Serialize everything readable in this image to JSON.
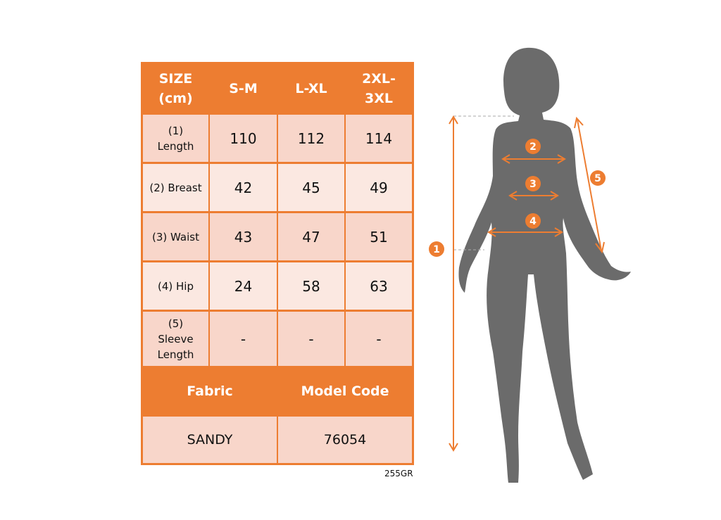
{
  "table": {
    "header": [
      "SIZE (cm)",
      "S-M",
      "L-XL",
      "2XL-3XL"
    ],
    "header_lines": [
      [
        "SIZE",
        "(cm)"
      ],
      [
        "S-M"
      ],
      [
        "L-XL"
      ],
      [
        "2XL-",
        "3XL"
      ]
    ],
    "rows": [
      {
        "label_lines": [
          "(1)",
          "Length"
        ],
        "values": [
          "110",
          "112",
          "114"
        ]
      },
      {
        "label_lines": [
          "(2) Breast"
        ],
        "values": [
          "42",
          "45",
          "49"
        ]
      },
      {
        "label_lines": [
          "(3) Waist"
        ],
        "values": [
          "43",
          "47",
          "51"
        ]
      },
      {
        "label_lines": [
          "(4) Hip"
        ],
        "values": [
          "24",
          "58",
          "63"
        ]
      },
      {
        "label_lines": [
          "(5)",
          "Sleeve",
          "Length"
        ],
        "values": [
          "-",
          "-",
          "-"
        ]
      }
    ],
    "footer_headers": [
      "Fabric",
      "Model Code"
    ],
    "footer_values": [
      "SANDY",
      "76054"
    ]
  },
  "product_code": "255GR",
  "figure": {
    "markers": [
      "1",
      "2",
      "3",
      "4",
      "5"
    ]
  },
  "colors": {
    "accent": "#ed7d31",
    "silhouette": "#6b6b6b",
    "cell_dark": "#f8d6ca",
    "cell_light": "#fbe8e1"
  }
}
